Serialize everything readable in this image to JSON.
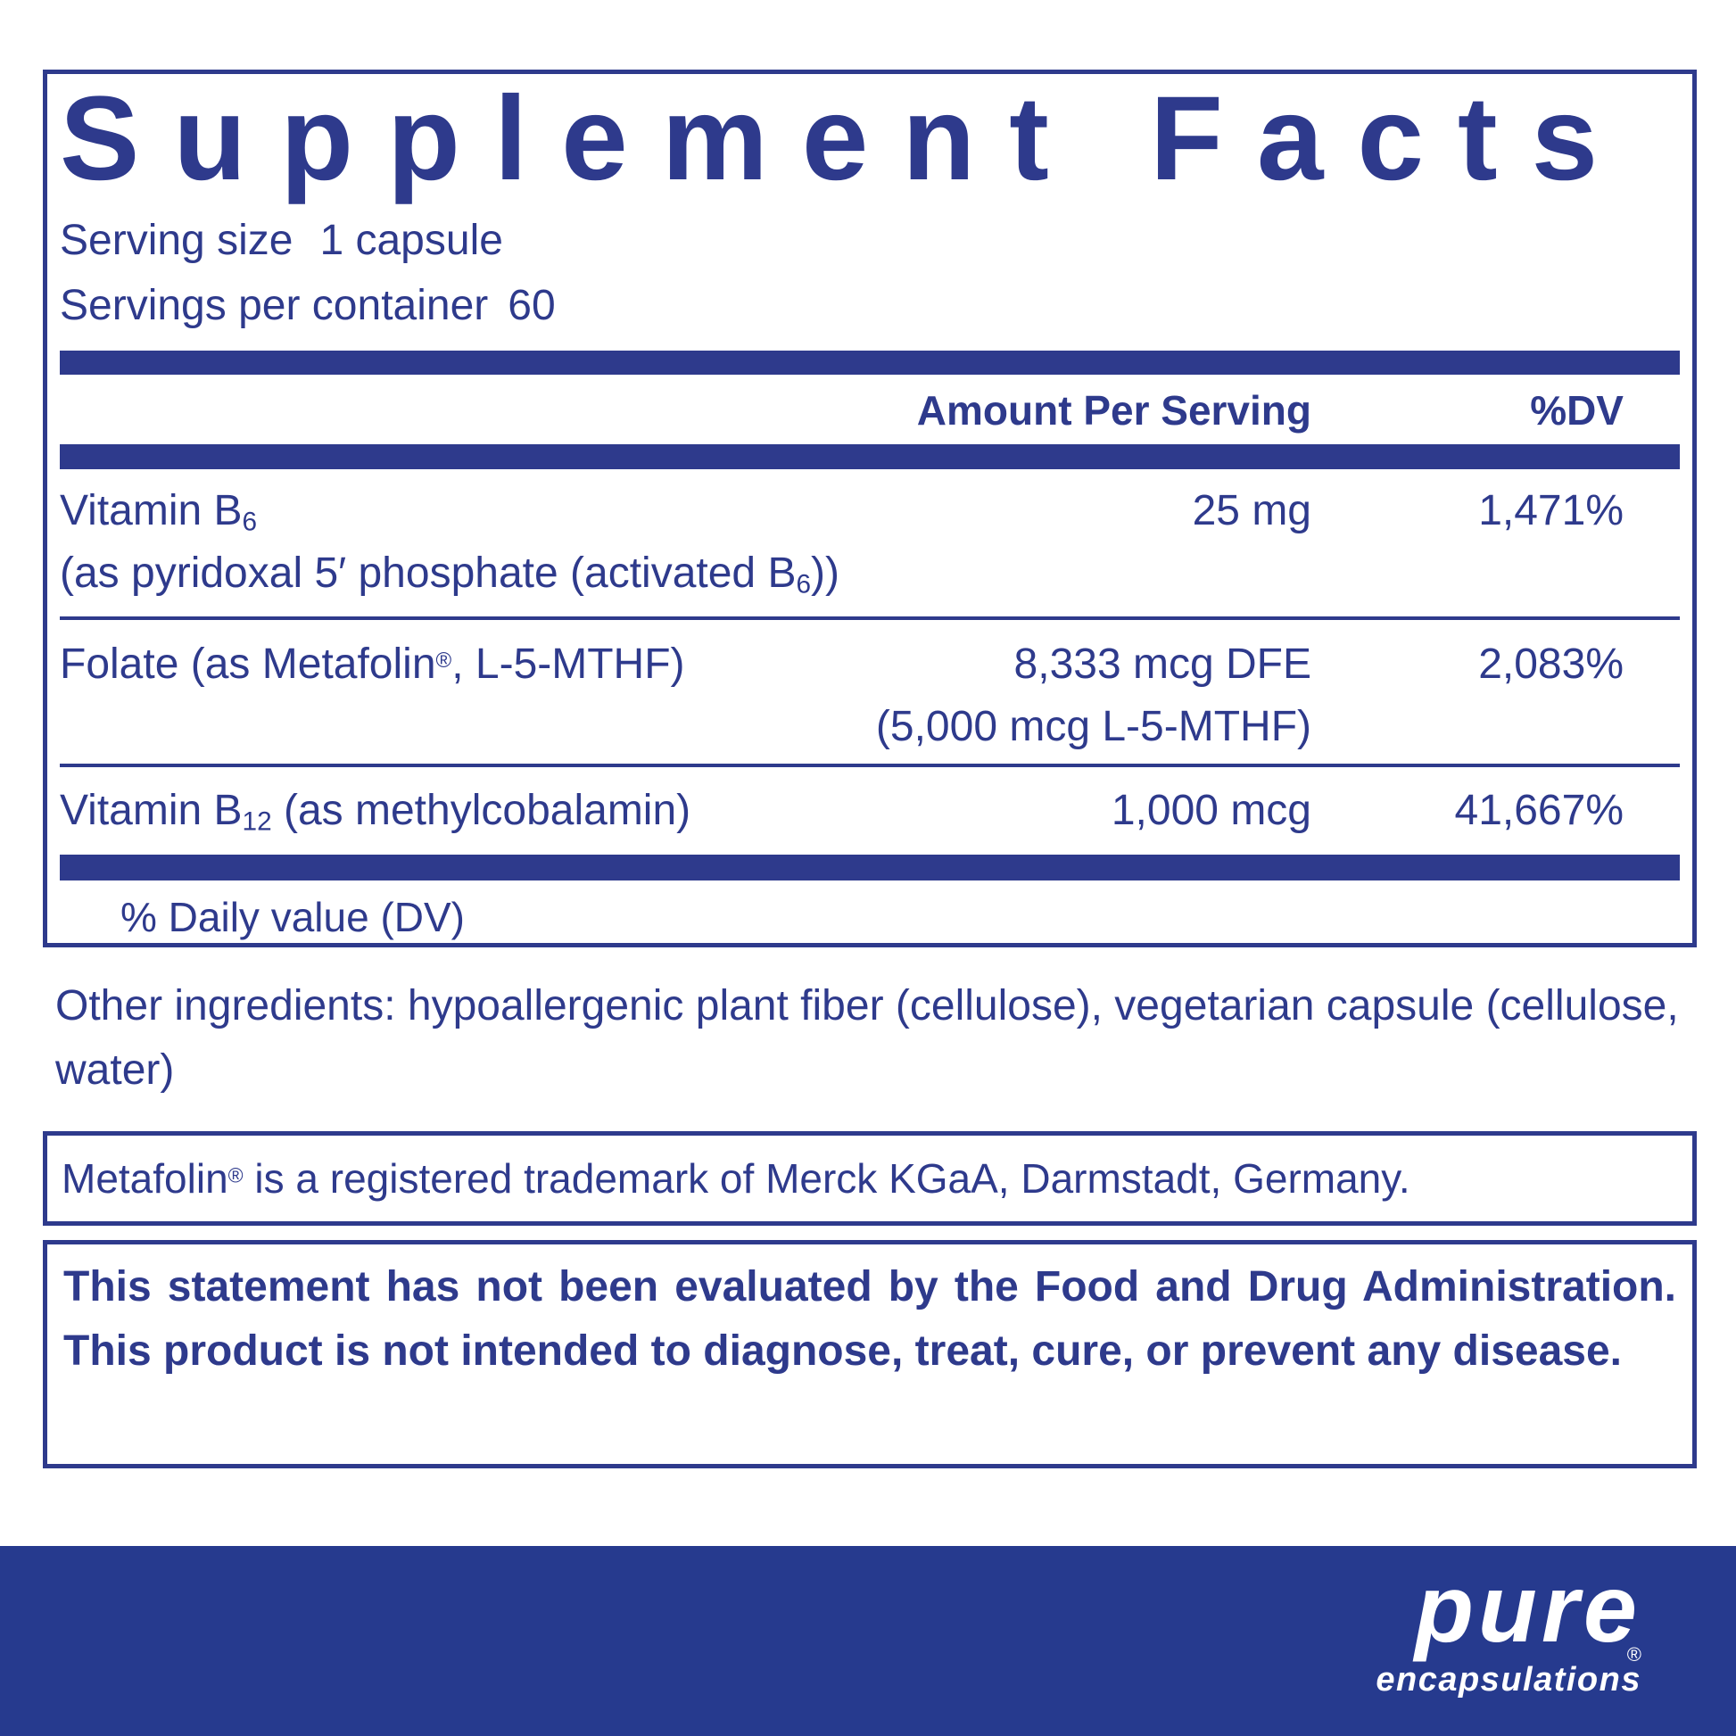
{
  "colors": {
    "navy_text": "#2e3a8c",
    "band_blue": "#263a8e",
    "background": "#ffffff",
    "logo_white": "#ffffff"
  },
  "facts": {
    "title": "Supplement Facts",
    "serving": {
      "size_label": "Serving size",
      "size_value": "1 capsule",
      "per_container_label": "Servings per container",
      "per_container_value": "60"
    },
    "columns": {
      "amount": "Amount Per Serving",
      "dv": "%DV"
    },
    "rows": [
      {
        "name_pre": "Vitamin B",
        "name_sub": "6",
        "name_post": "",
        "detail_pre": "(as pyridoxal 5′ phosphate (activated B",
        "detail_sub": "6",
        "detail_post": "))",
        "amount": "25 mg",
        "dv": "1,471%"
      },
      {
        "name_pre": "Folate (as Metafolin",
        "name_sup": "®",
        "name_post": ", L-5-MTHF)",
        "amount": "8,333 mcg DFE",
        "amount2": "(5,000 mcg L-5-MTHF)",
        "dv": "2,083%"
      },
      {
        "name_pre": "Vitamin B",
        "name_sub": "12",
        "name_post": " (as methylcobalamin)",
        "amount": "1,000 mcg",
        "dv": "41,667%"
      }
    ],
    "footnote": "% Daily value (DV)"
  },
  "other_ingredients": "Other ingredients: hypoallergenic plant fiber (cellulose), vegetarian capsule (cellulose, water)",
  "trademark_note": {
    "pre": "Metafolin",
    "sup": "®",
    "post": " is a registered trademark of Merck KGaA, Darmstadt, Germany."
  },
  "fda_statement": "This statement has not been evaluated by the Food and Drug Administration. This product is not intended to diagnose, treat, cure, or prevent any disease.",
  "brand": {
    "name": "pure",
    "registered": "®",
    "subname": "encapsulations"
  }
}
